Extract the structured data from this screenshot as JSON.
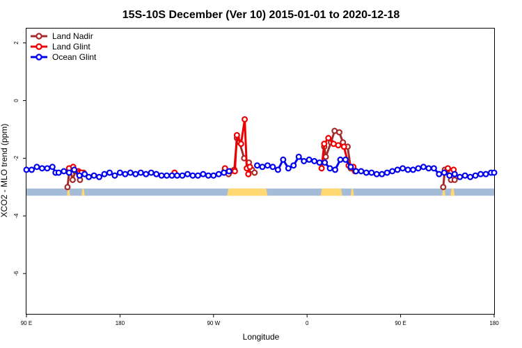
{
  "chart_data": {
    "type": "line",
    "title": "15S-10S December (Ver 10)   2015-01-01 to 2020-12-18",
    "xlabel": "Longitude",
    "ylabel": "XCO2 - MLO trend (ppm)",
    "xlim": [
      90,
      450
    ],
    "ylim": [
      -7.4,
      2.5
    ],
    "x_ticks": [
      {
        "value": 90,
        "label": "90 E"
      },
      {
        "value": 180,
        "label": "180"
      },
      {
        "value": 270,
        "label": "90 W"
      },
      {
        "value": 360,
        "label": "0"
      },
      {
        "value": 450,
        "label": "90 E"
      },
      {
        "value": 540,
        "label": "180"
      }
    ],
    "y_ticks": [
      {
        "value": 2,
        "label": "2"
      },
      {
        "value": 0,
        "label": "0"
      },
      {
        "value": -2,
        "label": "-2"
      },
      {
        "value": -4,
        "label": "-4"
      },
      {
        "value": -6,
        "label": "-6"
      }
    ],
    "x_domain": [
      90,
      540
    ],
    "legend": {
      "position": "top-left",
      "entries": [
        {
          "name": "Land Nadir",
          "color": "#a52a2a"
        },
        {
          "name": "Land Glint",
          "color": "#ee0000"
        },
        {
          "name": "Ocean Glint",
          "color": "#0000ee"
        }
      ]
    },
    "land_sea_band": {
      "y_top": -3.05,
      "y_bottom": -3.3,
      "ocean_color": "#a5bcd9",
      "land_color": "#ffd773",
      "land_segments": [
        [
          129,
          132
        ],
        [
          143,
          146
        ],
        [
          283,
          322
        ],
        [
          373,
          394
        ],
        [
          402,
          405
        ],
        [
          490,
          493
        ],
        [
          498,
          502
        ]
      ]
    },
    "series": [
      {
        "name": "Land Nadir",
        "color": "#a52a2a",
        "segments": [
          {
            "x": [
              129.5,
              131.5,
              134.5,
              137,
              141.5,
              145
            ],
            "y": [
              -3.0,
              -2.35,
              -2.75,
              -2.45,
              -2.75,
              -2.5
            ]
          },
          {
            "x": [
              280.5,
              284.5,
              290,
              292.5,
              295,
              299.5,
              304,
              307,
              309.5
            ],
            "y": [
              -2.45,
              -2.55,
              -2.4,
              -1.3,
              -1.45,
              -2.0,
              -2.15,
              -2.4,
              -2.5
            ]
          },
          {
            "x": [
              376.5,
              378,
              383,
              386.5,
              391,
              394.5,
              399,
              402,
              404.5,
              407
            ],
            "y": [
              -1.6,
              -1.95,
              -1.45,
              -1.05,
              -1.1,
              -1.45,
              -1.6,
              -2.35,
              -2.35,
              -2.45
            ]
          },
          {
            "x": [
              491,
              492.5,
              495,
              498.5,
              502
            ],
            "y": [
              -3.0,
              -2.4,
              -2.4,
              -2.75,
              -2.75
            ]
          }
        ]
      },
      {
        "name": "Land Glint",
        "color": "#ee0000",
        "segments": [
          {
            "x": [
              131,
              135,
              140,
              141,
              143
            ],
            "y": [
              -2.35,
              -2.3,
              -2.45,
              -2.5,
              -2.5
            ]
          },
          {
            "x": [
              232.5
            ],
            "y": [
              -2.5
            ]
          },
          {
            "x": [
              281,
              286.5,
              290.5,
              292.5,
              296.5,
              300,
              302,
              303.5,
              305
            ],
            "y": [
              -2.35,
              -2.45,
              -2.45,
              -1.2,
              -1.5,
              -0.65,
              -2.35,
              -2.55,
              -2.3
            ]
          },
          {
            "x": [
              374,
              376.5,
              380.5,
              385.5,
              390,
              395.5,
              400,
              404.5,
              406
            ],
            "y": [
              -2.35,
              -1.5,
              -1.3,
              -1.5,
              -1.55,
              -1.6,
              -2.25,
              -2.3,
              -2.45
            ]
          },
          {
            "x": [
              495.5,
              501
            ],
            "y": [
              -2.35,
              -2.4
            ]
          }
        ]
      },
      {
        "name": "Ocean Glint",
        "color": "#0000ee",
        "segments": [
          {
            "x": [
              90,
              95,
              100,
              105,
              110,
              115,
              118,
              121,
              126,
              131,
              136,
              141,
              146,
              150,
              155,
              160,
              165,
              170,
              175,
              180,
              185,
              190,
              195,
              200,
              205,
              210,
              215,
              220,
              225,
              230,
              235,
              240,
              245,
              250,
              255,
              260,
              265,
              270,
              275,
              280,
              285
            ],
            "y": [
              -2.4,
              -2.4,
              -2.3,
              -2.35,
              -2.35,
              -2.3,
              -2.5,
              -2.5,
              -2.45,
              -2.5,
              -2.4,
              -2.6,
              -2.55,
              -2.65,
              -2.6,
              -2.65,
              -2.55,
              -2.5,
              -2.6,
              -2.5,
              -2.55,
              -2.5,
              -2.55,
              -2.5,
              -2.55,
              -2.5,
              -2.55,
              -2.6,
              -2.6,
              -2.6,
              -2.6,
              -2.6,
              -2.55,
              -2.6,
              -2.6,
              -2.55,
              -2.6,
              -2.6,
              -2.55,
              -2.5,
              -2.45
            ]
          },
          {
            "x": [
              312,
              317,
              322,
              327,
              332,
              337,
              342,
              347,
              352,
              357,
              362,
              367,
              372,
              377,
              382,
              387,
              392,
              397,
              402,
              407,
              412,
              417,
              422,
              427,
              432,
              437,
              442,
              447,
              452,
              457,
              462,
              467,
              472,
              477,
              482,
              487,
              492,
              497,
              502,
              507,
              512,
              517,
              522,
              527,
              532,
              537,
              540
            ],
            "y": [
              -2.25,
              -2.3,
              -2.25,
              -2.3,
              -2.4,
              -2.05,
              -2.35,
              -2.25,
              -1.95,
              -2.1,
              -2.05,
              -2.1,
              -2.15,
              -2.15,
              -2.35,
              -2.4,
              -2.05,
              -2.05,
              -2.3,
              -2.45,
              -2.45,
              -2.5,
              -2.5,
              -2.55,
              -2.55,
              -2.5,
              -2.45,
              -2.4,
              -2.35,
              -2.4,
              -2.4,
              -2.35,
              -2.3,
              -2.35,
              -2.35,
              -2.55,
              -2.5,
              -2.6,
              -2.55,
              -2.65,
              -2.6,
              -2.65,
              -2.6,
              -2.55,
              -2.55,
              -2.5,
              -2.5
            ]
          }
        ]
      }
    ]
  }
}
